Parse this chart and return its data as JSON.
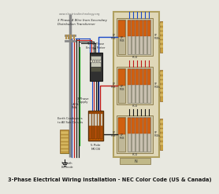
{
  "title": "3-Phase Electrical Wiring Installation - NEC Color Code (US & Canada)",
  "bg_color": "#e8e8e0",
  "title_fontsize": 4.8,
  "watermark": "www.electricaltechnology.org",
  "panel_bg": "#e0d8b8",
  "panel_border": "#b0a060",
  "breaker_body": "#b8b0a0",
  "breaker_orange": "#d06010",
  "breaker_light": "#c8bca8",
  "wire_blue": "#1848c8",
  "wire_red": "#c01818",
  "wire_black": "#181818",
  "wire_green": "#18a018",
  "wire_gray": "#787878",
  "pole_color": "#888888",
  "meter_dark": "#303030",
  "meter_face": "#c8c8b8",
  "mccb_orange": "#c86000",
  "terminal_tan": "#c8a040",
  "terminal_brown": "#906830",
  "neutral_bar": "#c0b890",
  "ground_bar": "#40a040"
}
